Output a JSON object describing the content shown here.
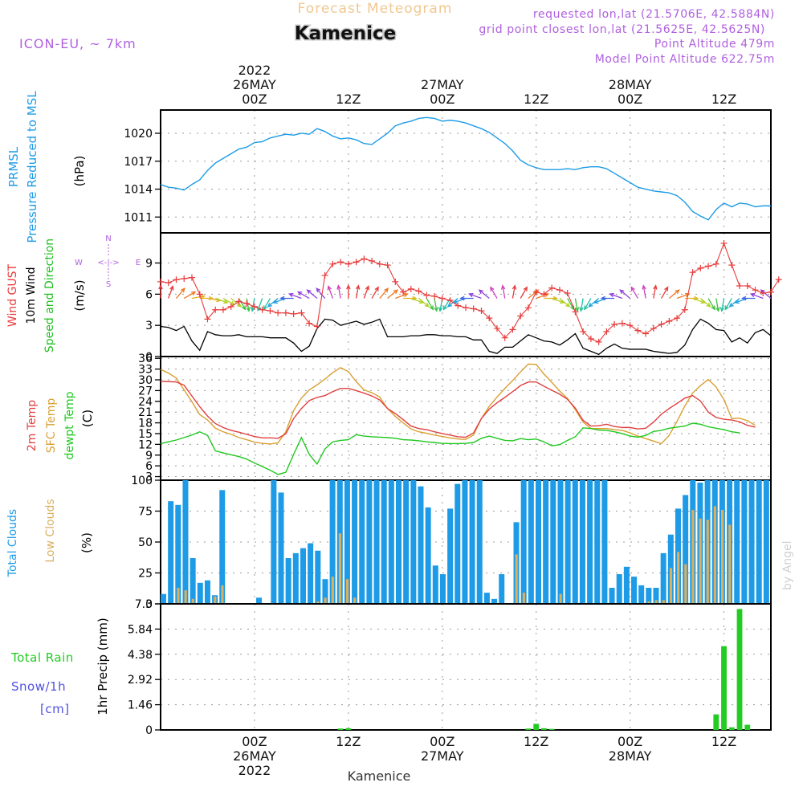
{
  "header": {
    "product": "Forecast Meteogram",
    "location": "Kamenice",
    "model": "ICON-EU, ~ 7km",
    "requested": "requested lon,lat (21.5706E, 42.5884N)",
    "gridpoint": "grid point closest lon,lat (21.5625E, 42.5625N)",
    "point_alt": "Point Altitude 479m",
    "model_alt": "Model Point Altitude 622.75m",
    "footer_location": "Kamenice",
    "credit": "by Angel"
  },
  "colors": {
    "pressure": "#1e9be6",
    "gust": "#e83a3a",
    "wind": "#000000",
    "dir": "#1fbf1f",
    "temp": "#e04040",
    "sfc": "#d9a032",
    "dewpt": "#1ec81e",
    "total_clouds": "#1e9be6",
    "low_clouds": "#d9b060",
    "rain": "#22cc22",
    "snow": "#5050e0",
    "purple": "#b060e0"
  },
  "time_axis": {
    "labels_top": [
      {
        "t": 12,
        "lines": [
          "2022",
          "26MAY",
          "00Z"
        ]
      },
      {
        "t": 24,
        "lines": [
          "12Z"
        ]
      },
      {
        "t": 36,
        "lines": [
          "27MAY",
          "00Z"
        ]
      },
      {
        "t": 48,
        "lines": [
          "12Z"
        ]
      },
      {
        "t": 60,
        "lines": [
          "28MAY",
          "00Z"
        ]
      },
      {
        "t": 72,
        "lines": [
          "12Z"
        ]
      }
    ],
    "labels_bottom": [
      {
        "t": 12,
        "lines": [
          "00Z",
          "26MAY",
          "2022"
        ]
      },
      {
        "t": 24,
        "lines": [
          "12Z"
        ]
      },
      {
        "t": 36,
        "lines": [
          "00Z",
          "27MAY"
        ]
      },
      {
        "t": 48,
        "lines": [
          "12Z"
        ]
      },
      {
        "t": 60,
        "lines": [
          "00Z",
          "28MAY"
        ]
      },
      {
        "t": 72,
        "lines": [
          "12Z"
        ]
      }
    ]
  },
  "compass": {
    "n": "N",
    "s": "S",
    "w": "W",
    "e": "E",
    "arrow": "<-|->"
  },
  "chart_data": [
    {
      "id": "pressure",
      "type": "line",
      "ylabels": [
        "PRMSL",
        "Pressure Reduced to MSL"
      ],
      "unit": "(hPa)",
      "ylim": [
        1009.3,
        1022.5
      ],
      "yticks": [
        1011,
        1014,
        1017,
        1020
      ],
      "series": [
        {
          "values": [
            1014.5,
            1014.2,
            1014.1,
            1013.9,
            1014.5,
            1015,
            1016,
            1016.8,
            1017.3,
            1017.8,
            1018.3,
            1018.5,
            1019,
            1019.1,
            1019.5,
            1019.7,
            1019.9,
            1019.8,
            1020,
            1019.9,
            1020.5,
            1020.2,
            1019.7,
            1019.4,
            1019.5,
            1019.3,
            1018.9,
            1018.8,
            1019.4,
            1020,
            1020.8,
            1021.1,
            1021.3,
            1021.6,
            1021.7,
            1021.6,
            1021.3,
            1021.4,
            1021.3,
            1021.1,
            1020.8,
            1020.5,
            1020.1,
            1019.5,
            1018.9,
            1018.1,
            1017.1,
            1016.6,
            1016.3,
            1016.1,
            1016.1,
            1016.1,
            1016.2,
            1016.1,
            1016.3,
            1016.4,
            1016.4,
            1016.2,
            1015.7,
            1015.2,
            1014.7,
            1014.2,
            1014,
            1013.8,
            1013.7,
            1013.6,
            1013.3,
            1012.6,
            1011.6,
            1011.1,
            1010.7,
            1011.8,
            1012.5,
            1012.1,
            1012.5,
            1012.4,
            1012.1,
            1012.2,
            1012.2
          ]
        }
      ]
    },
    {
      "id": "wind",
      "type": "line",
      "ylabels_left": [
        "Wind GUST",
        "10m Wind",
        "Speed and Direction"
      ],
      "unit": "(m/s)",
      "ylim": [
        0,
        11.9
      ],
      "yticks": [
        0,
        3,
        6,
        9
      ],
      "series": [
        {
          "name": "Wind GUST",
          "values": [
            7.2,
            7.1,
            7.4,
            7.5,
            7.6,
            6,
            3.6,
            4.5,
            4.5,
            4.8,
            5.3,
            5.1,
            4.8,
            4.5,
            4.4,
            4.2,
            4.2,
            4.1,
            4.2,
            3.2,
            2.9,
            7.8,
            8.9,
            9.1,
            8.9,
            9.1,
            9.4,
            9.2,
            8.9,
            8.8,
            7.2,
            6.2,
            6.5,
            6.3,
            5.9,
            5.8,
            5.6,
            5.4,
            4.9,
            4.7,
            4.6,
            4.4,
            3.7,
            2.7,
            1.8,
            2.6,
            3.9,
            4.7,
            6.2,
            6,
            6.6,
            6.4,
            6.1,
            4.3,
            2.4,
            1.7,
            1.4,
            2.4,
            3.1,
            3.2,
            3,
            2.5,
            2.2,
            2.7,
            3.1,
            3.4,
            3.7,
            4.5,
            8.1,
            8.5,
            8.7,
            8.9,
            10.9,
            8.8,
            6.8,
            6.8,
            6.4,
            6.1,
            6.2,
            7.4
          ]
        },
        {
          "name": "10m Wind",
          "values": [
            2.9,
            2.8,
            2.5,
            2.9,
            1.5,
            0.6,
            2.4,
            2.1,
            2,
            2,
            2.1,
            1.9,
            1.9,
            1.9,
            1.8,
            1.8,
            1.8,
            1.3,
            0.5,
            1,
            2.7,
            3.6,
            3.5,
            3,
            3.2,
            3.4,
            3.1,
            3.3,
            3.6,
            1.9,
            1.9,
            1.9,
            2,
            2,
            2.1,
            2.1,
            2,
            2,
            1.9,
            1.9,
            1.6,
            1.6,
            0.5,
            0.3,
            0.9,
            0.9,
            1.5,
            2.1,
            1.8,
            1.5,
            1.4,
            1.1,
            1.6,
            2.2,
            0.8,
            0.5,
            0.2,
            0.8,
            1.2,
            0.8,
            0.7,
            0.7,
            0.7,
            0.5,
            0.4,
            0.3,
            0.4,
            1.1,
            2.6,
            3.6,
            3.2,
            2.6,
            2.5,
            1.4,
            1.8,
            1.3,
            2.3,
            2.6,
            2
          ]
        },
        {
          "name": "Direction",
          "values": [
            0,
            20,
            40,
            60,
            80,
            90,
            100,
            110,
            120,
            130,
            150,
            170,
            190,
            200,
            210,
            230,
            250,
            270,
            290,
            300,
            310,
            320,
            340,
            350,
            0,
            10,
            20,
            30,
            40,
            50,
            70,
            90,
            110,
            130,
            150,
            170,
            190,
            210,
            230,
            250,
            270,
            290,
            310,
            330,
            350,
            10,
            30,
            50,
            70,
            90,
            110,
            130,
            150,
            170,
            190,
            210,
            230,
            250,
            270,
            290,
            310,
            330,
            350,
            10,
            30,
            50,
            70,
            90,
            110,
            130,
            150,
            170,
            190,
            210,
            230,
            250,
            270,
            290,
            310
          ]
        }
      ]
    },
    {
      "id": "temperature",
      "type": "line",
      "ylabels_left": [
        "2m Temp",
        "SFC Temp",
        "dewpt Temp"
      ],
      "unit": "(C)",
      "ylim": [
        2,
        36.5
      ],
      "yticks": [
        3,
        6,
        9,
        12,
        15,
        18,
        21,
        24,
        27,
        30,
        33,
        36
      ],
      "series": [
        {
          "name": "2m Temp",
          "values": [
            29.6,
            29.5,
            29.4,
            28.5,
            25.5,
            22.5,
            19.9,
            17.8,
            16.7,
            15.9,
            15.4,
            14.8,
            14.2,
            13.8,
            13.8,
            13.7,
            14.9,
            19.2,
            22,
            24.2,
            25.1,
            25.6,
            26.7,
            27.6,
            27.6,
            27,
            26.3,
            25.5,
            24.4,
            22,
            20.6,
            18.9,
            17.1,
            16.4,
            16.1,
            15.5,
            15,
            14.6,
            14.1,
            14,
            15.2,
            19.2,
            21.8,
            23.6,
            25.1,
            26.7,
            28.4,
            29.4,
            29.4,
            28.2,
            27.1,
            26,
            24.6,
            22.1,
            18.7,
            17.1,
            17.2,
            17.6,
            17,
            16.7,
            16.7,
            16.3,
            16.5,
            18.2,
            20.4,
            22,
            23.4,
            24.9,
            25.6,
            24.1,
            21,
            19.5,
            19,
            18.8,
            18.3,
            17.3,
            16.8
          ]
        },
        {
          "name": "SFC Temp",
          "values": [
            32.9,
            31.9,
            30.5,
            27.2,
            23.9,
            20.3,
            18.8,
            16.5,
            15.5,
            14.8,
            13.9,
            13.3,
            12.6,
            12.3,
            12.1,
            12.4,
            15.5,
            21.4,
            24.9,
            27.2,
            28.6,
            30.2,
            32,
            33.4,
            32.3,
            29.5,
            27.2,
            26.4,
            25.2,
            22,
            19.8,
            18,
            16.3,
            15.5,
            15.1,
            14.6,
            14.2,
            13.8,
            13.5,
            13.4,
            14.6,
            19.2,
            22.6,
            25.2,
            27.6,
            29.8,
            32.2,
            34.4,
            34.3,
            31.6,
            29.3,
            26.9,
            24.8,
            21.7,
            18.2,
            16.4,
            16.4,
            16.4,
            16.1,
            15.9,
            15.2,
            14.3,
            13.6,
            12.9,
            12.2,
            14.5,
            18.4,
            22.7,
            26.3,
            28.4,
            30.1,
            28,
            24.5,
            19.2,
            19.3,
            18.6,
            17.3
          ]
        },
        {
          "name": "dewpt Temp",
          "values": [
            12.2,
            12.7,
            13.2,
            13.9,
            14.6,
            15.5,
            14.5,
            10.2,
            9.6,
            9.1,
            8.6,
            7.9,
            6.8,
            5.8,
            4.8,
            3.6,
            4.2,
            9.2,
            13.9,
            9.2,
            6.5,
            10.7,
            12.7,
            13.1,
            13.3,
            14.7,
            14.3,
            14.1,
            14,
            13.9,
            13.7,
            13.3,
            13.2,
            13,
            12.7,
            12.5,
            12.3,
            12.2,
            12.2,
            12.3,
            12.5,
            13.7,
            14.3,
            13.7,
            13.1,
            13,
            13.6,
            13.3,
            13.5,
            12.7,
            11.6,
            11.9,
            13.1,
            14.1,
            16.6,
            16.4,
            16,
            15.9,
            15.5,
            15,
            14.3,
            14,
            14.5,
            15.6,
            15.9,
            16.5,
            16.8,
            17.1,
            17.9,
            17.6,
            16.9,
            16.5,
            16.1,
            15.5,
            15.2
          ]
        }
      ]
    },
    {
      "id": "clouds",
      "type": "bar",
      "ylabels_left": [
        "Total Clouds",
        "Low Clouds"
      ],
      "unit": "(%)",
      "ylim": [
        0,
        100
      ],
      "yticks": [
        0,
        25,
        50,
        75,
        100
      ],
      "series": [
        {
          "name": "Total Clouds",
          "values": [
            8,
            83,
            80,
            100,
            37,
            17,
            19,
            7,
            92,
            0,
            0,
            0,
            0,
            5,
            0,
            100,
            90,
            37,
            41,
            45,
            49,
            43,
            20,
            100,
            100,
            100,
            100,
            100,
            100,
            100,
            100,
            100,
            100,
            100,
            100,
            95,
            78,
            31,
            24,
            77,
            97,
            100,
            100,
            100,
            9,
            4,
            24,
            0,
            66,
            100,
            100,
            100,
            100,
            100,
            100,
            100,
            100,
            100,
            100,
            100,
            100,
            13,
            24,
            30,
            22,
            15,
            13,
            13,
            41,
            56,
            77,
            88,
            100,
            98,
            100,
            100,
            100,
            100,
            100,
            100,
            100,
            100,
            100
          ]
        },
        {
          "name": "Low Clouds",
          "values": [
            0,
            0,
            13,
            11,
            4,
            0,
            0,
            6,
            15,
            0,
            0,
            0,
            0,
            0,
            0,
            0,
            0,
            0,
            0,
            0,
            0,
            2,
            5,
            22,
            57,
            20,
            5,
            0,
            0,
            0,
            0,
            0,
            0,
            0,
            0,
            0,
            0,
            0,
            0,
            0,
            0,
            0,
            0,
            0,
            0,
            0,
            0,
            0,
            40,
            9,
            0,
            0,
            0,
            0,
            8,
            0,
            0,
            0,
            0,
            0,
            0,
            0,
            0,
            0,
            0,
            0,
            2,
            3,
            3,
            29,
            42,
            32,
            76,
            69,
            68,
            79,
            76,
            64
          ]
        }
      ]
    },
    {
      "id": "precip",
      "type": "bar",
      "ylabels_left": [
        "Total  Rain",
        "Snow/1h",
        "[cm]"
      ],
      "ylabel_right": "1hr Precip (mm)",
      "ylim": [
        0,
        7.3
      ],
      "yticks": [
        0,
        1.46,
        2.92,
        4.38,
        5.84,
        7.3
      ],
      "series": [
        {
          "name": "Total Rain",
          "values": [
            0,
            0,
            0,
            0,
            0,
            0,
            0,
            0,
            0,
            0,
            0,
            0,
            0,
            0,
            0,
            0,
            0,
            0,
            0,
            0,
            0,
            0,
            0,
            0.08,
            0.1,
            0,
            0,
            0,
            0,
            0,
            0,
            0,
            0,
            0,
            0,
            0,
            0,
            0,
            0,
            0,
            0,
            0,
            0,
            0,
            0,
            0,
            0,
            0.08,
            0.35,
            0.1,
            0.06,
            0,
            0,
            0,
            0,
            0,
            0,
            0,
            0,
            0,
            0,
            0,
            0,
            0,
            0,
            0,
            0,
            0,
            0,
            0,
            0,
            0.9,
            4.85,
            0.15,
            7,
            0.3,
            0,
            0,
            0
          ]
        }
      ]
    }
  ]
}
